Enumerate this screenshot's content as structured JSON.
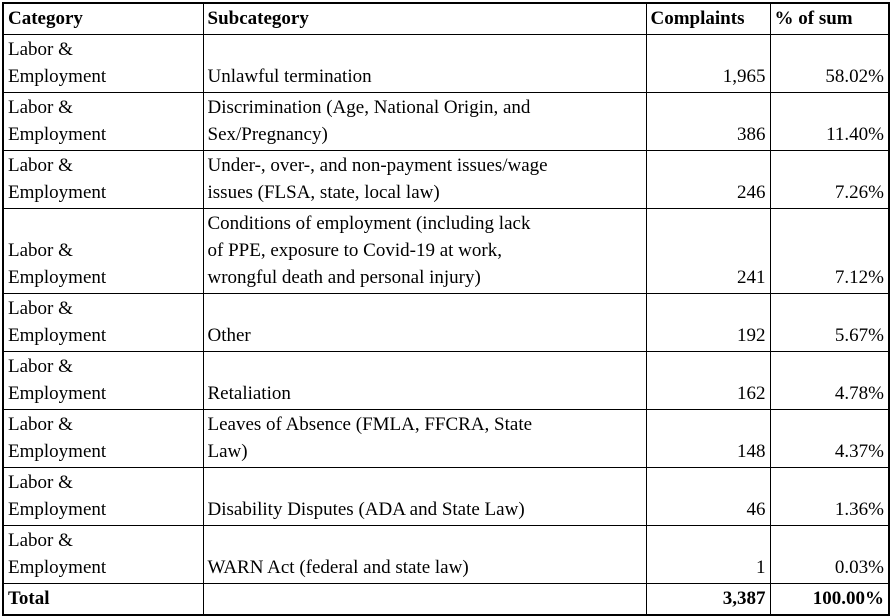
{
  "colors": {
    "background": "#ffffff",
    "text": "#000000",
    "border": "#000000"
  },
  "table": {
    "columns": [
      "Category",
      "Subcategory",
      "Complaints",
      "% of sum"
    ],
    "rows": [
      {
        "category": "Labor &\nEmployment",
        "subcategory": "Unlawful termination",
        "complaints": "1,965",
        "pct": "58.02%"
      },
      {
        "category": "Labor &\nEmployment",
        "subcategory": "Discrimination (Age, National Origin, and\nSex/Pregnancy)",
        "complaints": "386",
        "pct": "11.40%"
      },
      {
        "category": "Labor &\nEmployment",
        "subcategory": "Under-, over-, and non-payment issues/wage\nissues (FLSA, state, local law)",
        "complaints": "246",
        "pct": "7.26%"
      },
      {
        "category": "Labor &\nEmployment",
        "subcategory": "Conditions of employment (including lack\nof PPE, exposure to Covid-19 at work,\nwrongful death and personal injury)",
        "complaints": "241",
        "pct": "7.12%"
      },
      {
        "category": "Labor &\nEmployment",
        "subcategory": "Other",
        "complaints": "192",
        "pct": "5.67%"
      },
      {
        "category": "Labor &\nEmployment",
        "subcategory": "Retaliation",
        "complaints": "162",
        "pct": "4.78%"
      },
      {
        "category": "Labor &\nEmployment",
        "subcategory": "Leaves of Absence (FMLA, FFCRA, State\nLaw)",
        "complaints": "148",
        "pct": "4.37%"
      },
      {
        "category": "Labor &\nEmployment",
        "subcategory": "Disability Disputes (ADA and State Law)",
        "complaints": "46",
        "pct": "1.36%"
      },
      {
        "category": "Labor &\nEmployment",
        "subcategory": "WARN Act (federal and state law)",
        "complaints": "1",
        "pct": "0.03%"
      }
    ],
    "total": {
      "label": "Total",
      "subcategory": "",
      "complaints": "3,387",
      "pct": "100.00%"
    }
  }
}
